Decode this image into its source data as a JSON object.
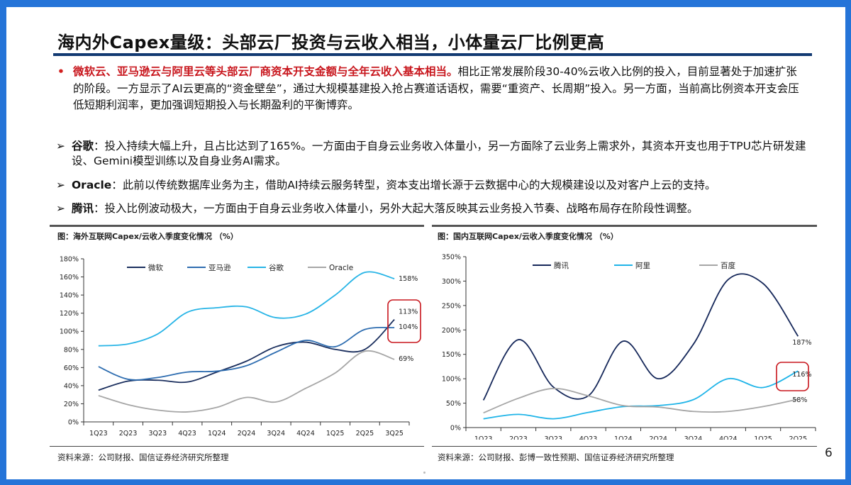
{
  "title": "海内外Capex量级：头部云厂投资与云收入相当，小体量云厂比例更高",
  "bullet": {
    "highlight": "微软云、亚马逊云与阿里云等头部云厂商资本开支金额与全年云收入基本相当。",
    "text": "相比正常发展阶段30-40%云收入比例的投入，目前显著处于加速扩张的阶段。一方显示了AI云更高的“资金壁垒”，通过大规模基建投入抢占赛道话语权，需要“重资产、长周期”投入。另一方面，当前高比例资本开支会压低短期利润率，更加强调短期投入与长期盈利的平衡博弈。"
  },
  "points": [
    {
      "label": "谷歌",
      "text": "：投入持续大幅上升，且占比达到了165%。一方面由于自身云业务收入体量小，另一方面除了云业务上需求外，其资本开支也用于TPU芯片研发建设、Gemini模型训练以及自身业务AI需求。"
    },
    {
      "label": "Oracle",
      "text": "：此前以传统数据库业务为主，借助AI持续云服务转型，资本支出增长源于云数据中心的大规模建设以及对客户上云的支持。"
    },
    {
      "label": "腾讯",
      "text": "：投入比例波动极大，一方面由于自身云业务收入体量小，另外大起大落反映其云业务投入节奏、战略布局存在阶段性调整。"
    }
  ],
  "bullet_marker": "•",
  "arrow_marker": "➢",
  "page_number": "6",
  "chart_data": [
    {
      "type": "line",
      "title": "图：海外互联网Capex/云收入季度变化情况 （%）",
      "source": "资料来源：公司财报、国信证券经济研究所整理",
      "categories": [
        "1Q23",
        "2Q23",
        "3Q23",
        "4Q23",
        "1Q24",
        "2Q24",
        "3Q24",
        "4Q24",
        "1Q25",
        "2Q25",
        "3Q25"
      ],
      "yticks": [
        "0%",
        "20%",
        "40%",
        "60%",
        "80%",
        "100%",
        "120%",
        "140%",
        "160%",
        "180%"
      ],
      "ylim": [
        0,
        180
      ],
      "legend_position": "top",
      "series": [
        {
          "name": "微软",
          "color": "#1b2f5e",
          "values": [
            35,
            45,
            46,
            44,
            55,
            67,
            83,
            88,
            80,
            80,
            113
          ],
          "end_label": "113%"
        },
        {
          "name": "亚马逊",
          "color": "#2e6db0",
          "values": [
            61,
            47,
            49,
            55,
            56,
            62,
            77,
            90,
            83,
            102,
            104
          ],
          "end_label": "104%"
        },
        {
          "name": "谷歌",
          "color": "#27b4e6",
          "values": [
            84,
            86,
            97,
            121,
            126,
            127,
            115,
            119,
            140,
            165,
            158
          ],
          "end_label": "158%"
        },
        {
          "name": "Oracle",
          "color": "#a6a6a6",
          "values": [
            29,
            19,
            13,
            11,
            16,
            27,
            22,
            37,
            54,
            78,
            69
          ],
          "end_label": "69%"
        }
      ],
      "highlight_color": "#c8161d"
    },
    {
      "type": "line",
      "title": "图：国内互联网Capex/云收入季度变化情况 （%）",
      "source": "资料来源：公司财报、彭博一致性预期、国信证券经济研究所整理",
      "categories": [
        "1Q23",
        "2Q23",
        "3Q23",
        "4Q23",
        "1Q24",
        "2Q24",
        "3Q24",
        "4Q24",
        "1Q25",
        "2Q25"
      ],
      "yticks": [
        "0%",
        "50%",
        "100%",
        "150%",
        "200%",
        "250%",
        "300%",
        "350%"
      ],
      "ylim": [
        0,
        350
      ],
      "legend_position": "top",
      "series": [
        {
          "name": "腾讯",
          "color": "#16285a",
          "values": [
            56,
            180,
            83,
            65,
            177,
            100,
            170,
            303,
            295,
            187
          ],
          "end_label": "187%"
        },
        {
          "name": "阿里",
          "color": "#1fb4e8",
          "values": [
            18,
            27,
            18,
            31,
            43,
            45,
            57,
            100,
            82,
            116
          ],
          "end_label": "116%"
        },
        {
          "name": "百度",
          "color": "#a6a6a6",
          "values": [
            30,
            60,
            80,
            65,
            45,
            42,
            33,
            33,
            43,
            58
          ],
          "end_label": "58%"
        }
      ],
      "highlight_color": "#c8161d"
    }
  ]
}
